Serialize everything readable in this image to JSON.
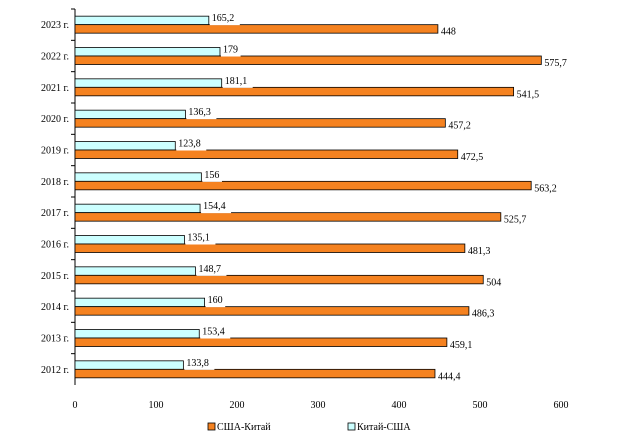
{
  "chart_data": {
    "type": "bar",
    "orientation": "horizontal",
    "categories": [
      "2023 г.",
      "2022 г.",
      "2021 г.",
      "2020 г.",
      "2019 г.",
      "2018 г.",
      "2017 г.",
      "2016 г.",
      "2015 г.",
      "2014 г.",
      "2013 г.",
      "2012 г."
    ],
    "series": [
      {
        "name": "США-Китай",
        "color": "#f58220",
        "values": [
          448,
          575.7,
          541.5,
          457.2,
          472.5,
          563.2,
          525.7,
          481.3,
          504,
          486.3,
          459.1,
          444.4
        ],
        "labels": [
          "448",
          "575,7",
          "541,5",
          "457,2",
          "472,5",
          "563,2",
          "525,7",
          "481,3",
          "504",
          "486,3",
          "459,1",
          "444,4"
        ]
      },
      {
        "name": "Китай-США",
        "color": "#ccffff",
        "values": [
          165.2,
          179,
          181.1,
          136.3,
          123.8,
          156,
          154.4,
          135.1,
          148.7,
          160,
          153.4,
          133.8
        ],
        "labels": [
          "165,2",
          "179",
          "181,1",
          "136,3",
          "123,8",
          "156",
          "154,4",
          "135,1",
          "148,7",
          "160",
          "153,4",
          "133,8"
        ]
      }
    ],
    "xlim": [
      0,
      600
    ],
    "xticks": [
      0,
      100,
      200,
      300,
      400,
      500,
      600
    ],
    "title": "",
    "xlabel": "",
    "ylabel": "",
    "grid": false,
    "legend_position": "bottom"
  }
}
